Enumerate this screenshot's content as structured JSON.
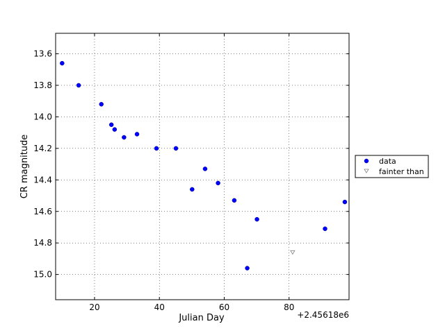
{
  "chart_data": {
    "type": "scatter",
    "xlabel": "Julian Day",
    "ylabel": "CR magnitude",
    "x_offset_label": "+2.45618e6",
    "xlim": [
      8.0,
      98.5
    ],
    "ylim": [
      15.16,
      13.47
    ],
    "y_inverted": true,
    "grid": true,
    "grid_style": "dotted",
    "xticks": [
      20,
      40,
      60,
      80
    ],
    "xtick_labels": [
      "20",
      "40",
      "60",
      "80"
    ],
    "yticks": [
      13.6,
      13.8,
      14.0,
      14.2,
      14.4,
      14.6,
      14.8,
      15.0
    ],
    "ytick_labels": [
      "13.6",
      "13.8",
      "14.0",
      "14.2",
      "14.4",
      "14.6",
      "14.8",
      "15.0"
    ],
    "legend_position": "right, outside plot",
    "series": [
      {
        "name": "data",
        "marker": "circle",
        "color": "#0000ff",
        "points": [
          [
            10.0,
            13.66
          ],
          [
            15.1,
            13.8
          ],
          [
            22.1,
            13.92
          ],
          [
            25.2,
            14.05
          ],
          [
            26.2,
            14.08
          ],
          [
            29.1,
            14.13
          ],
          [
            33.1,
            14.11
          ],
          [
            39.1,
            14.2
          ],
          [
            45.1,
            14.2
          ],
          [
            50.1,
            14.46
          ],
          [
            54.1,
            14.33
          ],
          [
            58.1,
            14.42
          ],
          [
            63.1,
            14.53
          ],
          [
            67.1,
            14.96
          ],
          [
            70.1,
            14.65
          ],
          [
            91.1,
            14.71
          ],
          [
            97.2,
            14.54
          ]
        ]
      },
      {
        "name": "fainter than",
        "marker": "triangle-down",
        "color": "#808080",
        "points": [
          [
            81.1,
            14.86
          ]
        ]
      }
    ]
  }
}
